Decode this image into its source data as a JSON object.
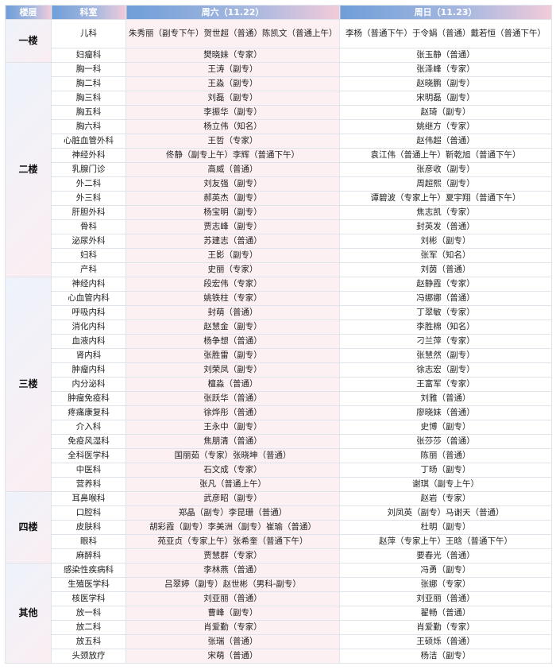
{
  "header": {
    "floor": "楼层",
    "dept": "科室",
    "sat": "周六（11.22）",
    "sun": "周日（11.23）"
  },
  "colors": {
    "header_start": "#6f9ed8",
    "header_end": "#f2cbd9",
    "saturday_bg": "#fcf0f3"
  },
  "groups": [
    {
      "floor": "一楼",
      "rows": [
        {
          "dept": "儿科",
          "sat": "朱秀丽（副专下午）贺世超（普通）陈凯文（普通上午）",
          "sun": "李杨（普通下午）于令娟（普通）戴若恒（普通下午）"
        },
        {
          "dept": "妇瘤科",
          "sat": "樊晓妹（专家）",
          "sun": "张玉静（普通）"
        }
      ]
    },
    {
      "floor": "二楼",
      "rows": [
        {
          "dept": "胸一科",
          "sat": "王涛（副专）",
          "sun": "张泽峰（专家）"
        },
        {
          "dept": "胸二科",
          "sat": "王淼（副专）",
          "sun": "赵晓鹏（副专）"
        },
        {
          "dept": "胸三科",
          "sat": "刘磊（副专）",
          "sun": "宋明磊（副专）"
        },
        {
          "dept": "胸五科",
          "sat": "李振华（副专）",
          "sun": "赵琦（副专）"
        },
        {
          "dept": "胸六科",
          "sat": "杨立伟（知名）",
          "sun": "姚继方（专家）"
        },
        {
          "dept": "心脏血管外科",
          "sat": "王哲（专家）",
          "sun": "赵伟超（普通）"
        },
        {
          "dept": "神经外科",
          "sat": "佟静（副专上午）李辉（普通下午）",
          "sun": "袁江伟（普通上午）靳乾旭（普通下午）"
        },
        {
          "dept": "乳腺门诊",
          "sat": "高威（普通）",
          "sun": "张彦收（副专）"
        },
        {
          "dept": "外二科",
          "sat": "刘友强（副专）",
          "sun": "周超熙（副专）"
        },
        {
          "dept": "外三科",
          "sat": "郝英杰（副专）",
          "sun": "谭碧波（专家上午）夏宇翔（普通下午）"
        },
        {
          "dept": "肝胆外科",
          "sat": "杨宝明（副专）",
          "sun": "焦志凯（专家）"
        },
        {
          "dept": "骨科",
          "sat": "贾志峰（副专）",
          "sun": "封英发（普通）"
        },
        {
          "dept": "泌尿外科",
          "sat": "苏建志（普通）",
          "sun": "刘彬（副专）"
        },
        {
          "dept": "妇科",
          "sat": "王影（副专）",
          "sun": "张军（知名）"
        },
        {
          "dept": "产科",
          "sat": "史丽（专家）",
          "sun": "刘茵（普通）"
        }
      ]
    },
    {
      "floor": "三楼",
      "rows": [
        {
          "dept": "神经内科",
          "sat": "段宏伟（专家）",
          "sun": "赵静霞（专家）"
        },
        {
          "dept": "心血管内科",
          "sat": "姚铁柱（专家）",
          "sun": "冯娜娜（普通）"
        },
        {
          "dept": "呼吸内科",
          "sat": "封萌（普通）",
          "sun": "丁翠敏（专家）"
        },
        {
          "dept": "消化内科",
          "sat": "赵慧金（副专）",
          "sun": "李胜棉（知名）"
        },
        {
          "dept": "血液内科",
          "sat": "杨争想（普通）",
          "sun": "刁兰萍（专家）"
        },
        {
          "dept": "肾内科",
          "sat": "张胜雷（副专）",
          "sun": "张慧然（副专）"
        },
        {
          "dept": "肿瘤内科",
          "sat": "刘荣凤（副专）",
          "sun": "徐志宏（副专）"
        },
        {
          "dept": "内分泌科",
          "sat": "檀淼（普通）",
          "sun": "王富军（专家）"
        },
        {
          "dept": "肿瘤免疫科",
          "sat": "张跃华（普通）",
          "sun": "刘雅（普通）"
        },
        {
          "dept": "疼痛康复科",
          "sat": "徐烨彤（普通）",
          "sun": "廖晓妹（普通）"
        },
        {
          "dept": "介入科",
          "sat": "王永中（副专）",
          "sun": "史博（副专）"
        },
        {
          "dept": "免疫风湿科",
          "sat": "焦朋清（普通）",
          "sun": "张莎莎（普通）"
        },
        {
          "dept": "全科医学科",
          "sat": "国丽茹（专家）张晓坤（普通）",
          "sun": "陈丽（普通）"
        },
        {
          "dept": "中医科",
          "sat": "石文成（专家）",
          "sun": "丁旸（副专）"
        },
        {
          "dept": "营养科",
          "sat": "张凡（普通上午）",
          "sun": "谢琪（副专上午）"
        }
      ]
    },
    {
      "floor": "四楼",
      "rows": [
        {
          "dept": "耳鼻喉科",
          "sat": "武彦昭（副专）",
          "sun": "赵岩（专家）"
        },
        {
          "dept": "口腔科",
          "sat": "郑晶（副专）李昆珊（普通）",
          "sun": "刘凤英（副专）马谢天（普通）"
        },
        {
          "dept": "皮肤科",
          "sat": "胡彩霞（副专）李美洲（副专）崔瑜（普通）",
          "sun": "杜明（副专）"
        },
        {
          "dept": "眼科",
          "sat": "苑亚贞（专家上午）张希奎（普通下午）",
          "sun": "赵萍（专家上午）王晗（普通下午）"
        },
        {
          "dept": "麻醉科",
          "sat": "贾慧群（专家）",
          "sun": "要春光（普通）"
        }
      ]
    },
    {
      "floor": "其他",
      "rows": [
        {
          "dept": "感染性疾病科",
          "sat": "李林燕（普通）",
          "sun": "冯勇（副专）"
        },
        {
          "dept": "生殖医学科",
          "sat": "吕翠婷（副专）赵世彬（男科-副专）",
          "sun": "张娜（专家）"
        },
        {
          "dept": "核医学科",
          "sat": "刘亚丽（普通）",
          "sun": "刘亚丽（普通）"
        },
        {
          "dept": "放一科",
          "sat": "曹峰（副专）",
          "sun": "翟畅（普通）"
        },
        {
          "dept": "放二科",
          "sat": "肖爱勤（专家）",
          "sun": "肖爱勤（专家）"
        },
        {
          "dept": "放五科",
          "sat": "张瑞（普通）",
          "sun": "王硕烁（普通）"
        },
        {
          "dept": "头颈放疗",
          "sat": "宋萌（普通）",
          "sun": "杨洁（副专）"
        }
      ]
    }
  ]
}
